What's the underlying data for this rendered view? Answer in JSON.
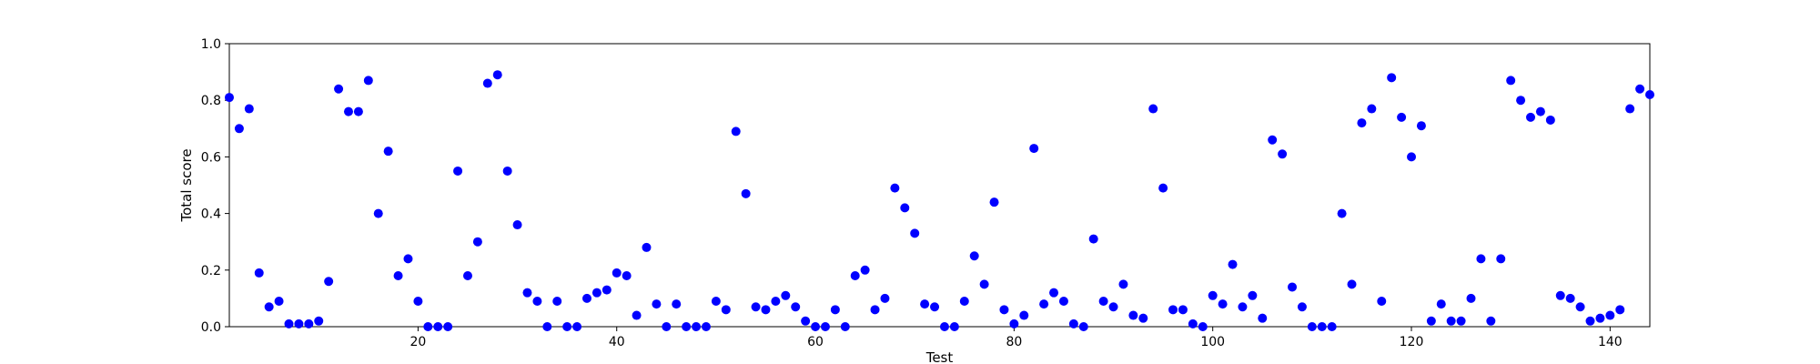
{
  "chart_data": {
    "type": "scatter",
    "title": "",
    "xlabel": "Test",
    "ylabel": "Total score",
    "xlim": [
      1,
      144
    ],
    "ylim": [
      0.0,
      1.0
    ],
    "xticks": [
      20,
      40,
      60,
      80,
      100,
      120,
      140
    ],
    "xtick_labels": [
      "20",
      "40",
      "60",
      "80",
      "100",
      "120",
      "140"
    ],
    "yticks": [
      0.0,
      0.2,
      0.4,
      0.6,
      0.8,
      1.0
    ],
    "ytick_labels": [
      "0.0",
      "0.2",
      "0.4",
      "0.6",
      "0.8",
      "1.0"
    ],
    "grid": false,
    "legend": "none",
    "marker_color": "#0000ff",
    "series": [
      {
        "x": [
          1,
          2,
          3,
          4,
          5,
          6,
          7,
          8,
          9,
          10,
          11,
          12,
          13,
          14,
          15,
          16,
          17,
          18,
          19,
          20,
          21,
          22,
          23,
          24,
          25,
          26,
          27,
          28,
          29,
          30,
          31,
          32,
          33,
          34,
          35,
          36,
          37,
          38,
          39,
          40,
          41,
          42,
          43,
          44,
          45,
          46,
          47,
          48,
          49,
          50,
          51,
          52,
          53,
          54,
          55,
          56,
          57,
          58,
          59,
          60,
          61,
          62,
          63,
          64,
          65,
          66,
          67,
          68,
          69,
          70,
          71,
          72,
          73,
          74,
          75,
          76,
          77,
          78,
          79,
          80,
          81,
          82,
          83,
          84,
          85,
          86,
          87,
          88,
          89,
          90,
          91,
          92,
          93,
          94,
          95,
          96,
          97,
          98,
          99,
          100,
          101,
          102,
          103,
          104,
          105,
          106,
          107,
          108,
          109,
          110,
          111,
          112,
          113,
          114,
          115,
          116,
          117,
          118,
          119,
          120,
          121,
          122,
          123,
          124,
          125,
          126,
          127,
          128,
          129,
          130,
          131,
          132,
          133,
          134,
          135,
          136,
          137,
          138,
          139,
          140,
          141,
          142,
          143,
          144
        ],
        "y": [
          0.81,
          0.7,
          0.77,
          0.19,
          0.07,
          0.09,
          0.01,
          0.01,
          0.01,
          0.02,
          0.16,
          0.84,
          0.76,
          0.76,
          0.87,
          0.4,
          0.62,
          0.18,
          0.24,
          0.09,
          0.0,
          0.0,
          0.0,
          0.55,
          0.18,
          0.3,
          0.86,
          0.89,
          0.55,
          0.36,
          0.12,
          0.09,
          0.0,
          0.09,
          0.0,
          0.0,
          0.1,
          0.12,
          0.13,
          0.19,
          0.18,
          0.04,
          0.28,
          0.08,
          0.0,
          0.08,
          0.0,
          0.0,
          0.0,
          0.09,
          0.06,
          0.69,
          0.47,
          0.07,
          0.06,
          0.09,
          0.11,
          0.07,
          0.02,
          0.0,
          0.0,
          0.06,
          0.0,
          0.18,
          0.2,
          0.06,
          0.1,
          0.49,
          0.42,
          0.33,
          0.08,
          0.07,
          0.0,
          0.0,
          0.09,
          0.25,
          0.15,
          0.44,
          0.06,
          0.01,
          0.04,
          0.63,
          0.08,
          0.12,
          0.09,
          0.01,
          0.0,
          0.31,
          0.09,
          0.07,
          0.15,
          0.04,
          0.03,
          0.77,
          0.49,
          0.06,
          0.06,
          0.01,
          0.0,
          0.11,
          0.08,
          0.22,
          0.07,
          0.11,
          0.03,
          0.66,
          0.61,
          0.14,
          0.07,
          0.0,
          0.0,
          0.0,
          0.4,
          0.15,
          0.72,
          0.77,
          0.09,
          0.88,
          0.74,
          0.6,
          0.71,
          0.02,
          0.08,
          0.02,
          0.02,
          0.1,
          0.24,
          0.02,
          0.24,
          0.87,
          0.8,
          0.74,
          0.76,
          0.73,
          0.11,
          0.1,
          0.07,
          0.02,
          0.03,
          0.04,
          0.06,
          0.77,
          0.84,
          0.82
        ]
      }
    ]
  }
}
